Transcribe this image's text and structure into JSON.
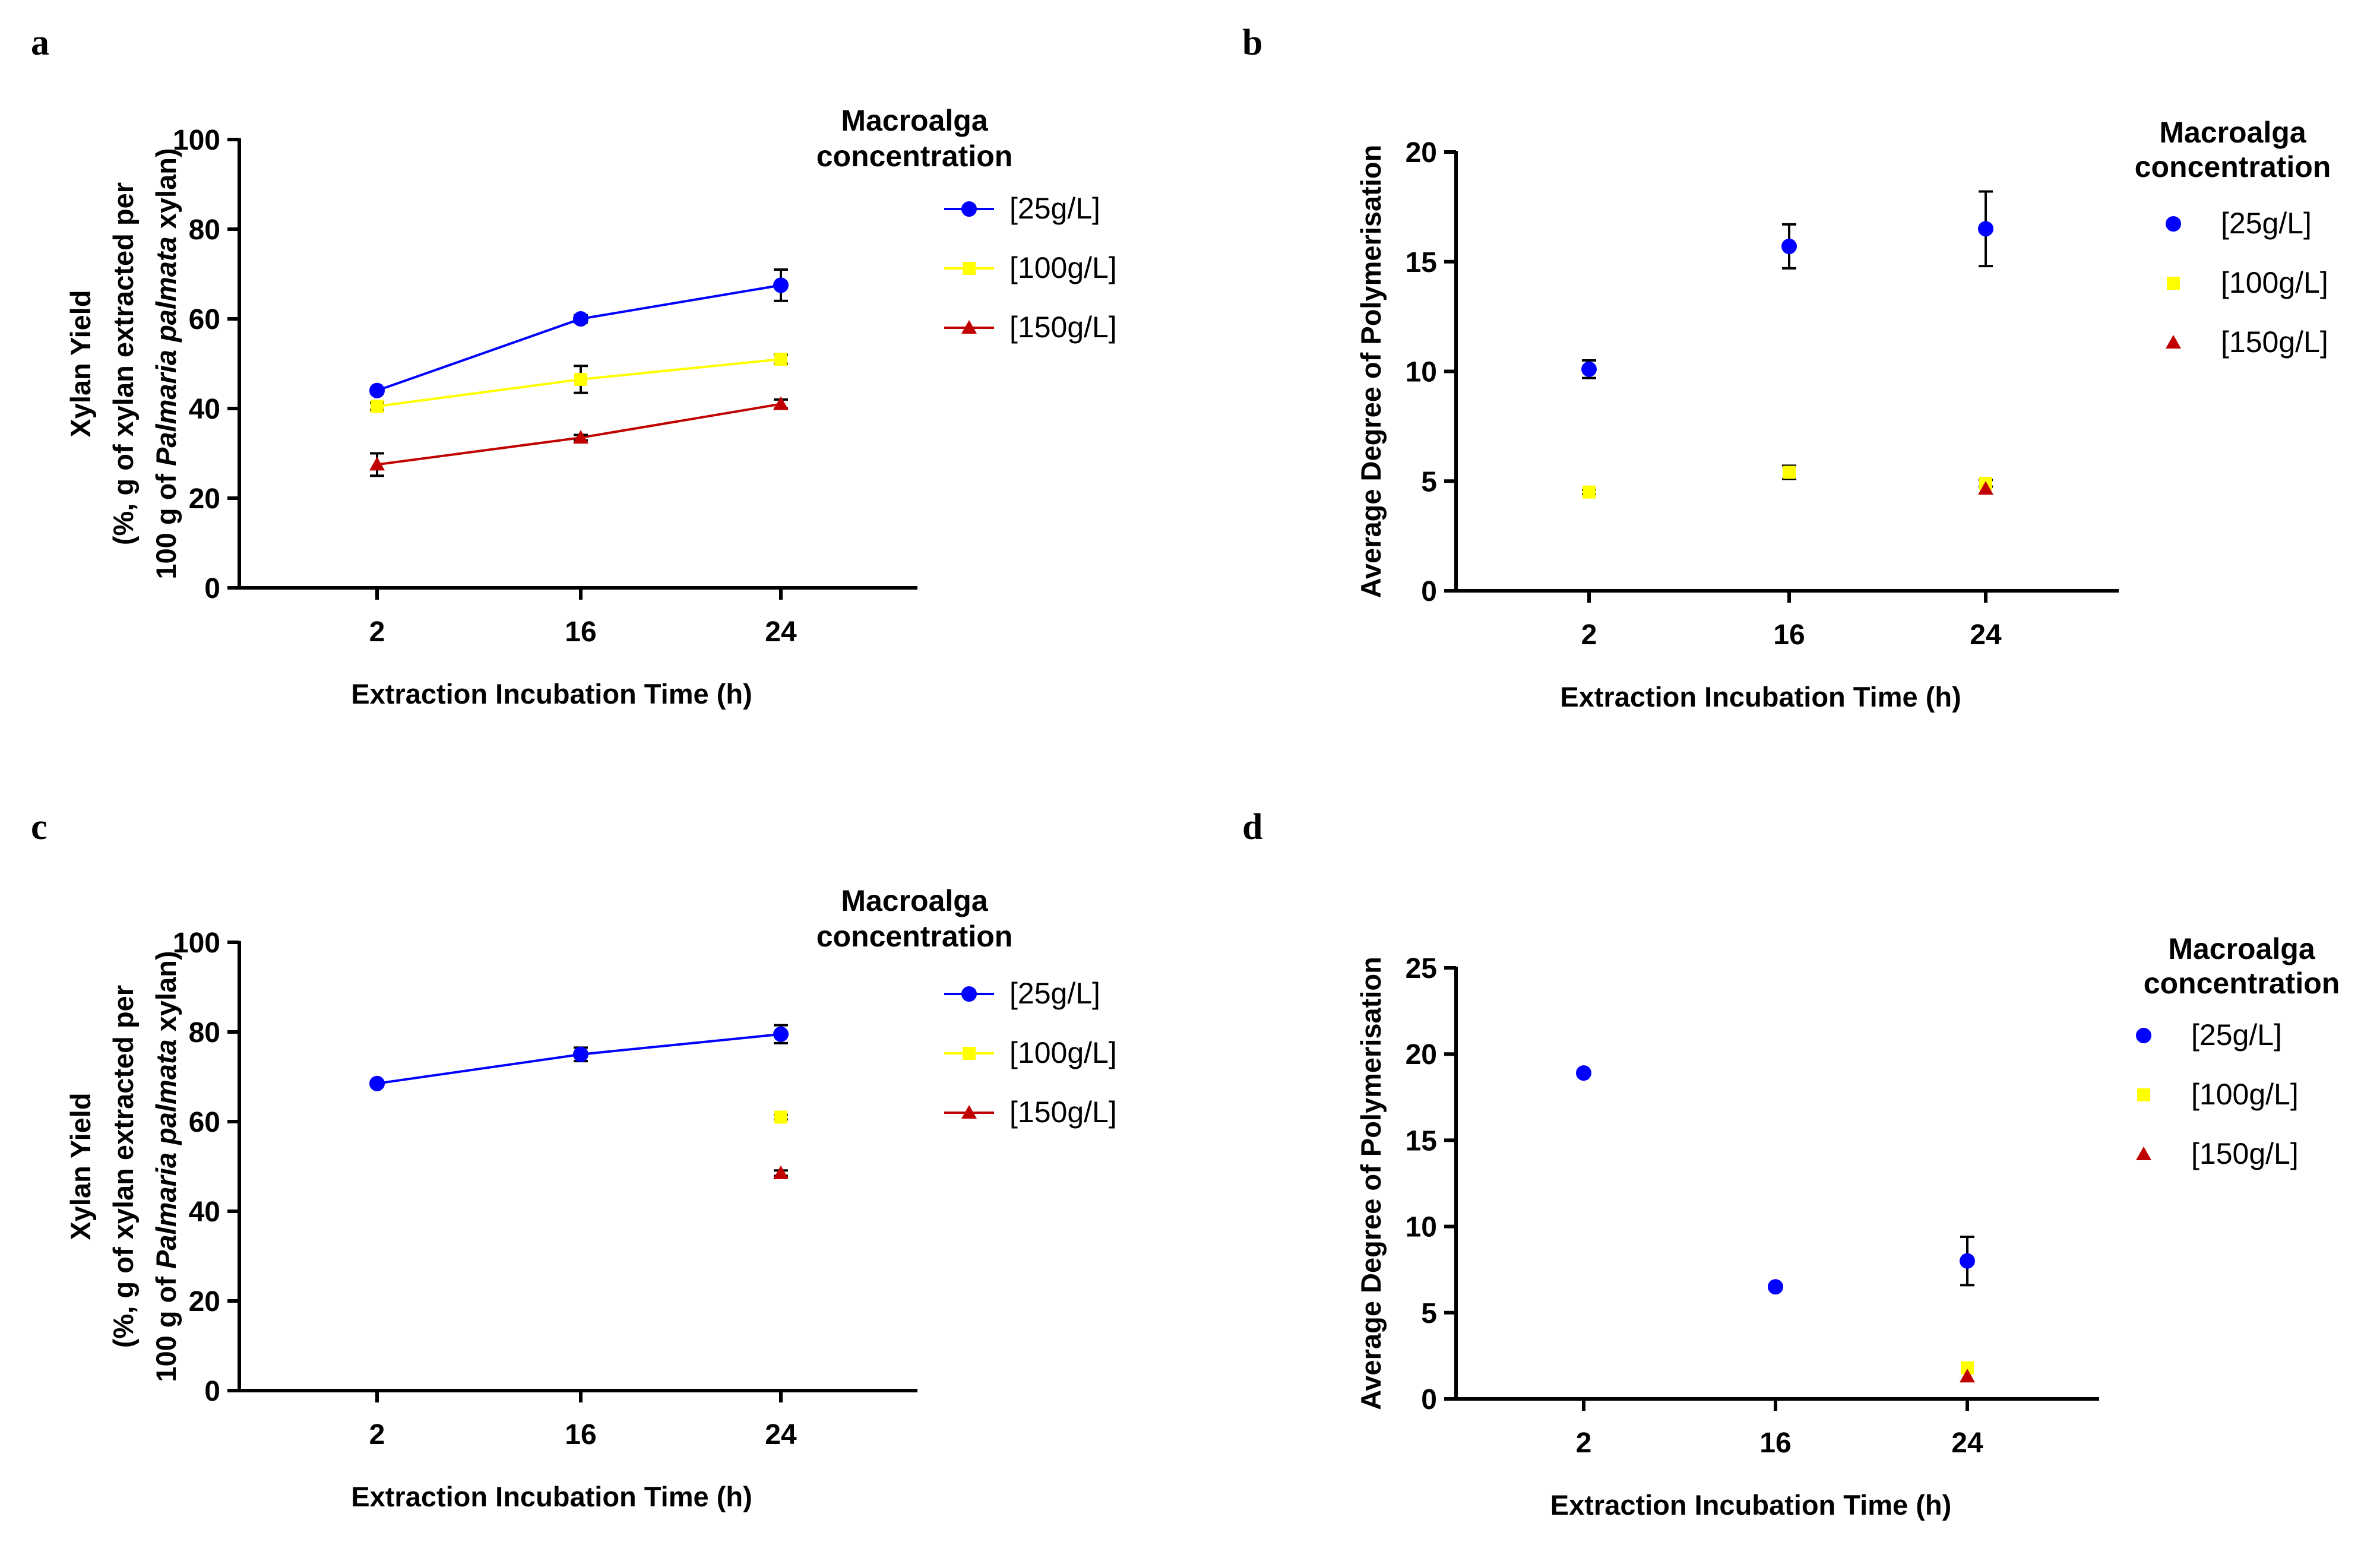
{
  "figure": {
    "panel_labels": [
      "a",
      "b",
      "c",
      "d"
    ]
  },
  "chart_data": [
    {
      "panel": "a",
      "type": "line",
      "xlabel": "Extraction Incubation Time (h)",
      "ylabel_lines": [
        "Xylan Yield",
        "(%, g of xylan extracted per",
        "100 g of ",
        "Palmaria palmata",
        " xylan)"
      ],
      "categories": [
        "2",
        "16",
        "24"
      ],
      "ylim": [
        0,
        100
      ],
      "yticks": [
        0,
        20,
        40,
        60,
        80,
        100
      ],
      "legend_title": [
        "Macroalga",
        "concentration"
      ],
      "legend_position": "right",
      "series": [
        {
          "name": "[25g/L]",
          "color": "#0000FF",
          "marker": "circle",
          "connected": true,
          "values": [
            44,
            60,
            67.5
          ],
          "errors": [
            0.6,
            0.8,
            3.5
          ]
        },
        {
          "name": "[100g/L]",
          "color": "#FFFF00",
          "marker": "square",
          "connected": true,
          "values": [
            40.5,
            46.5,
            51
          ],
          "errors": [
            0.8,
            3,
            1
          ]
        },
        {
          "name": "[150g/L]",
          "color": "#C00000",
          "marker": "triangle",
          "connected": true,
          "values": [
            27.5,
            33.5,
            41
          ],
          "errors": [
            2.5,
            0.6,
            1
          ]
        }
      ]
    },
    {
      "panel": "b",
      "type": "scatter",
      "xlabel": "Extraction Incubation Time (h)",
      "ylabel_lines": [
        "Average Degree of Polymerisation"
      ],
      "categories": [
        "2",
        "16",
        "24"
      ],
      "ylim": [
        0,
        20
      ],
      "yticks": [
        0,
        5,
        10,
        15,
        20
      ],
      "legend_title": [
        "Macroalga",
        "concentration"
      ],
      "legend_position": "right",
      "series": [
        {
          "name": "[25g/L]",
          "color": "#0000FF",
          "marker": "circle",
          "connected": false,
          "values": [
            10.1,
            15.7,
            16.5
          ],
          "errors": [
            0.4,
            1,
            1.7
          ]
        },
        {
          "name": "[100g/L]",
          "color": "#FFFF00",
          "marker": "square",
          "connected": false,
          "values": [
            4.5,
            5.4,
            4.9
          ],
          "errors": [
            0.1,
            0.3,
            0.15
          ]
        },
        {
          "name": "[150g/L]",
          "color": "#C00000",
          "marker": "triangle",
          "connected": false,
          "values": [
            null,
            null,
            4.65
          ],
          "errors": [
            0,
            0,
            0
          ]
        }
      ]
    },
    {
      "panel": "c",
      "type": "line",
      "xlabel": "Extraction Incubation Time (h)",
      "ylabel_lines": [
        "Xylan Yield",
        "(%, g of xylan extracted per",
        "100 g of ",
        "Palmaria palmata",
        " xylan)"
      ],
      "categories": [
        "2",
        "16",
        "24"
      ],
      "ylim": [
        0,
        100
      ],
      "yticks": [
        0,
        20,
        40,
        60,
        80,
        100
      ],
      "legend_title": [
        "Macroalga",
        "concentration"
      ],
      "legend_position": "right",
      "series": [
        {
          "name": "[25g/L]",
          "color": "#0000FF",
          "marker": "circle",
          "connected": true,
          "values": [
            68.5,
            75,
            79.5
          ],
          "errors": [
            0.5,
            1.5,
            2
          ]
        },
        {
          "name": "[100g/L]",
          "color": "#FFFF00",
          "marker": "square",
          "connected": true,
          "values": [
            null,
            null,
            61
          ],
          "errors": [
            0,
            0,
            0.5
          ]
        },
        {
          "name": "[150g/L]",
          "color": "#C00000",
          "marker": "triangle",
          "connected": true,
          "values": [
            null,
            null,
            48.5
          ],
          "errors": [
            0,
            0,
            0.6
          ]
        }
      ]
    },
    {
      "panel": "d",
      "type": "scatter",
      "xlabel": "Extraction Incubation Time (h)",
      "ylabel_lines": [
        "Average Degree of Polymerisation"
      ],
      "categories": [
        "2",
        "16",
        "24"
      ],
      "ylim": [
        0,
        25
      ],
      "yticks": [
        0,
        5,
        10,
        15,
        20,
        25
      ],
      "legend_title": [
        "Macroalga",
        "concentration"
      ],
      "legend_position": "right",
      "series": [
        {
          "name": "[25g/L]",
          "color": "#0000FF",
          "marker": "circle",
          "connected": false,
          "values": [
            18.9,
            6.5,
            8
          ],
          "errors": [
            0,
            0,
            1.4
          ]
        },
        {
          "name": "[100g/L]",
          "color": "#FFFF00",
          "marker": "square",
          "connected": false,
          "values": [
            null,
            null,
            1.8
          ],
          "errors": [
            0,
            0,
            0
          ]
        },
        {
          "name": "[150g/L]",
          "color": "#C00000",
          "marker": "triangle",
          "connected": false,
          "values": [
            null,
            null,
            1.3
          ],
          "errors": [
            0,
            0,
            0
          ]
        }
      ]
    }
  ]
}
